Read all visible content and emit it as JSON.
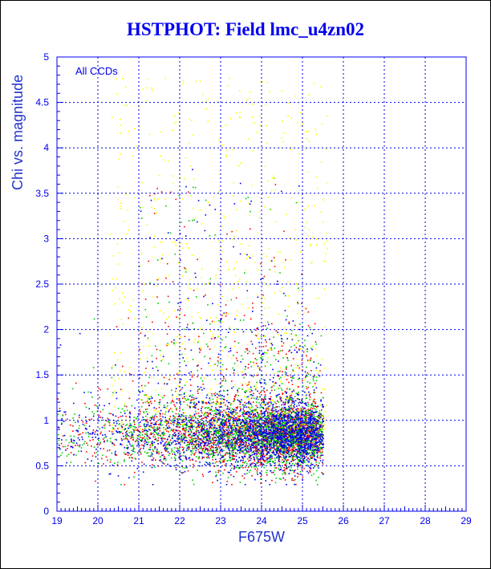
{
  "chart_data": {
    "type": "scatter",
    "title": "HSTPHOT: Field lmc_u4zn02",
    "xlabel": "F675W",
    "ylabel": "Chi vs. magnitude",
    "annotation": "All CCDs",
    "xlim": [
      19,
      29
    ],
    "ylim": [
      0,
      5
    ],
    "x_ticks": [
      "19",
      "20",
      "21",
      "22",
      "23",
      "24",
      "25",
      "26",
      "27",
      "28",
      "29"
    ],
    "y_ticks": [
      "0",
      "0.5",
      "1",
      "1.5",
      "2",
      "2.5",
      "3",
      "3.5",
      "4",
      "4.5",
      "5"
    ],
    "grid": true,
    "series": [
      {
        "color": "#ff0000",
        "density": "core"
      },
      {
        "color": "#00cc00",
        "density": "core"
      },
      {
        "color": "#0000ee",
        "density": "core"
      },
      {
        "color": "#ffff00",
        "density": "faint-scatter"
      }
    ],
    "point_distribution": {
      "x_range": [
        19,
        25.5
      ],
      "peak_x": 24.5,
      "core_y": 0.85,
      "core_y_spread": 0.18,
      "upper_envelope_y": 4.8
    }
  }
}
